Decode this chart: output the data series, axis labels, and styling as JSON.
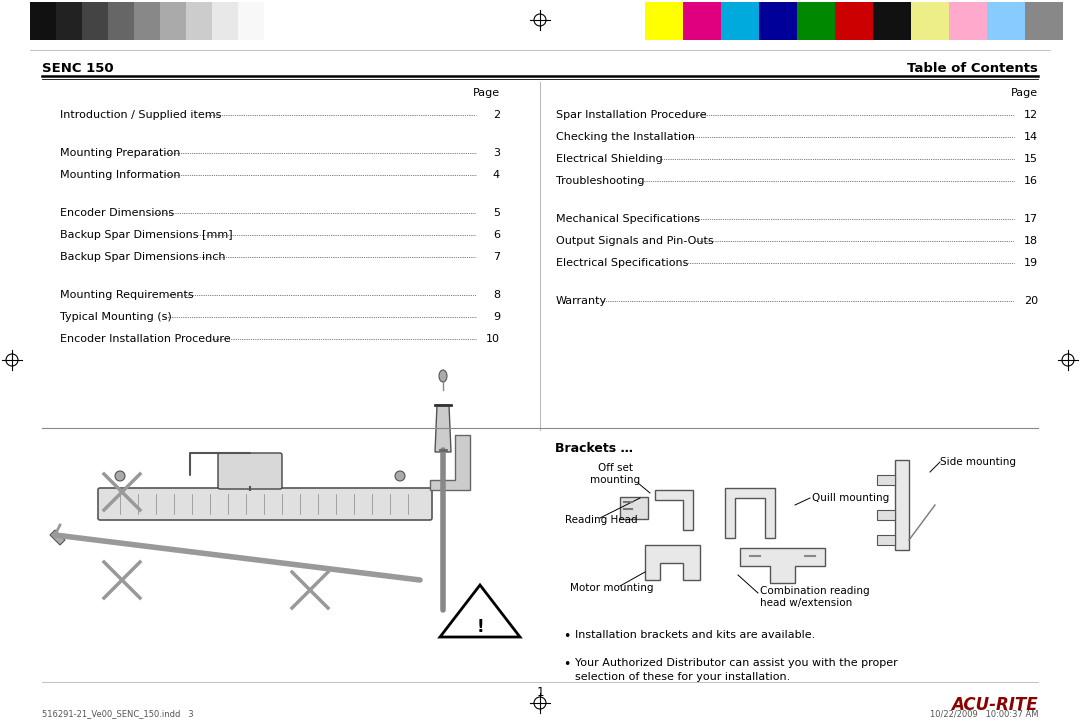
{
  "bg_color": "#ffffff",
  "header_color_bars_left": [
    "#111111",
    "#222222",
    "#444444",
    "#666666",
    "#888888",
    "#aaaaaa",
    "#cccccc",
    "#e8e8e8",
    "#f8f8f8"
  ],
  "header_color_bars_right": [
    "#ffff00",
    "#e0007f",
    "#00aadd",
    "#000099",
    "#008800",
    "#cc0000",
    "#111111",
    "#eeee88",
    "#ffaacc",
    "#88ccff",
    "#888888"
  ],
  "senc_title": "SENC 150",
  "toc_title": "Table of Contents",
  "left_toc": [
    {
      "text": "Introduction / Supplied items",
      "page": "2",
      "group": 0
    },
    {
      "text": "Mounting Preparation",
      "page": "3",
      "group": 1
    },
    {
      "text": "Mounting Information",
      "page": "4",
      "group": 1
    },
    {
      "text": "Encoder Dimensions",
      "page": "5",
      "group": 2
    },
    {
      "text": "Backup Spar Dimensions [mm]",
      "page": "6",
      "group": 2
    },
    {
      "text": "Backup Spar Dimensions inch",
      "page": "7",
      "group": 2
    },
    {
      "text": "Mounting Requirements",
      "page": "8",
      "group": 3
    },
    {
      "text": "Typical Mounting (s)",
      "page": "9",
      "group": 3
    },
    {
      "text": "Encoder Installation Procedure",
      "page": "10",
      "group": 3
    }
  ],
  "right_toc": [
    {
      "text": "Spar Installation Procedure",
      "page": "12",
      "group": 0
    },
    {
      "text": "Checking the Installation",
      "page": "14",
      "group": 0
    },
    {
      "text": "Electrical Shielding",
      "page": "15",
      "group": 0
    },
    {
      "text": "Troubleshooting",
      "page": "16",
      "group": 0
    },
    {
      "text": "Mechanical Specifications",
      "page": "17",
      "group": 1
    },
    {
      "text": "Output Signals and Pin-Outs",
      "page": "18",
      "group": 1
    },
    {
      "text": "Electrical Specifications",
      "page": "19",
      "group": 1
    },
    {
      "text": "Warranty",
      "page": "20",
      "group": 2
    }
  ],
  "brackets_title": "Brackets …",
  "bullet_points": [
    "Installation brackets and kits are available.",
    "Your Authorized Distributor can assist you with the proper\n    selection of these for your installation."
  ],
  "page_number": "1",
  "footer_left": "516291-21_Ve00_SENC_150.indd   3",
  "footer_right": "10/22/2009   10:00:37 AM",
  "acu_rite_text": "ACU-RITE"
}
